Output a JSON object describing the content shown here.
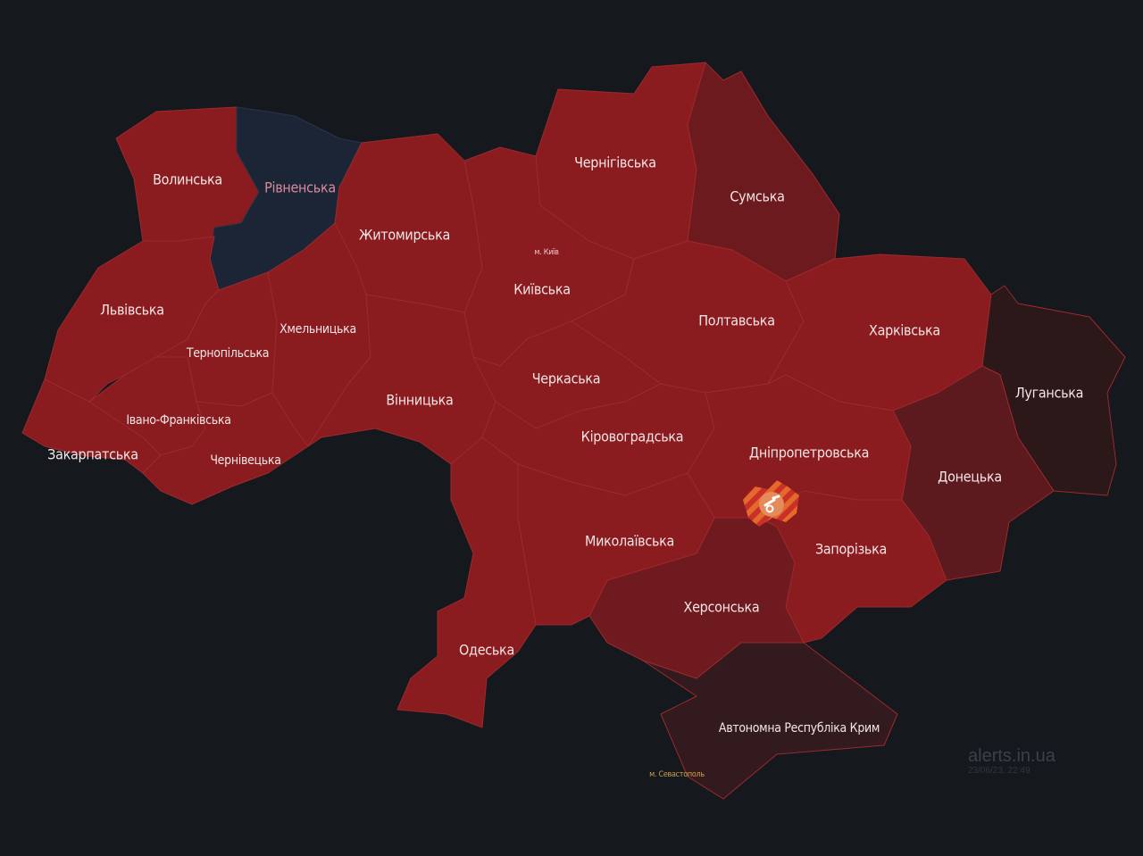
{
  "colors": {
    "background": "#15181d",
    "alert": "#8a1b1f",
    "alert_long": "#6d1a1e",
    "alert_longer": "#5c1a1e",
    "occupied": "#2c1719",
    "crimea": "#331a1e",
    "no_alert": "#1b2535",
    "artillery": "#e2662a"
  },
  "regions": [
    {
      "name": "Волинська",
      "fill": "#8a1b1f"
    },
    {
      "name": "Рівненська",
      "fill": "#1b2535",
      "label_color": "#d98aa0"
    },
    {
      "name": "Львівська",
      "fill": "#8a1b1f"
    },
    {
      "name": "Закарпатська",
      "fill": "#8a1b1f"
    },
    {
      "name": "Івано-Франківська",
      "fill": "#8a1b1f"
    },
    {
      "name": "Тернопільська",
      "fill": "#8a1b1f"
    },
    {
      "name": "Чернівецька",
      "fill": "#8a1b1f"
    },
    {
      "name": "Хмельницька",
      "fill": "#8a1b1f"
    },
    {
      "name": "Житомирська",
      "fill": "#8a1b1f"
    },
    {
      "name": "Вінницька",
      "fill": "#8a1b1f"
    },
    {
      "name": "Київська",
      "fill": "#8a1b1f"
    },
    {
      "name": "Чернігівська",
      "fill": "#8a1b1f"
    },
    {
      "name": "Сумська",
      "fill": "#6d1a1e"
    },
    {
      "name": "Полтавська",
      "fill": "#8a1b1f"
    },
    {
      "name": "Харківська",
      "fill": "#8a1b1f"
    },
    {
      "name": "Луганська",
      "fill": "#2c1719"
    },
    {
      "name": "Донецька",
      "fill": "#5c1a1e"
    },
    {
      "name": "Черкаська",
      "fill": "#8a1b1f"
    },
    {
      "name": "Кіровоградська",
      "fill": "#8a1b1f"
    },
    {
      "name": "Дніпропетровська",
      "fill": "#8a1b1f"
    },
    {
      "name": "Запорізька",
      "fill": "#8a1b1f"
    },
    {
      "name": "Херсонська",
      "fill": "#6e1a1e"
    },
    {
      "name": "Миколаївська",
      "fill": "#8a1b1f"
    },
    {
      "name": "Одеська",
      "fill": "#8a1b1f"
    },
    {
      "name": "Автономна Республіка Крим",
      "fill": "#331a1e"
    }
  ],
  "cities": {
    "kyiv": "м. Київ",
    "sevastopol": "м. Севастополь"
  },
  "markers": [
    {
      "icon": "artillery-icon",
      "region": "Дніпропетровська"
    }
  ],
  "watermark": {
    "site": "alerts.in.ua",
    "timestamp": "23/06/23, 22:49"
  }
}
